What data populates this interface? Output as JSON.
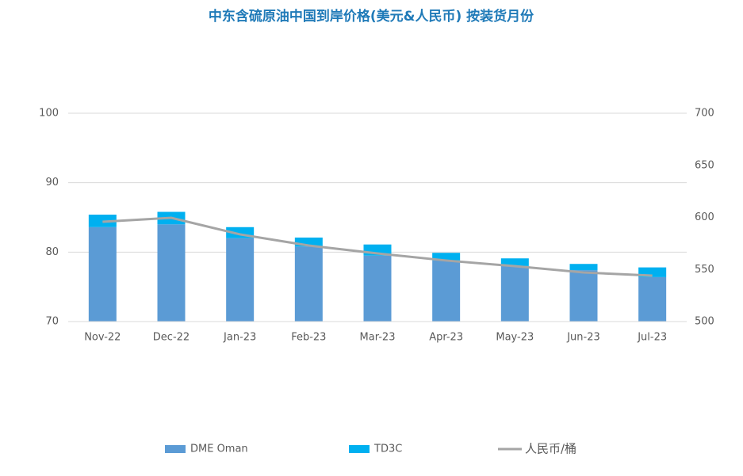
{
  "chart_data": {
    "type": "bar",
    "title": "中东含硫原油中国到岸价格(美元&人民币) 按装货月份",
    "categories": [
      "Nov-22",
      "Dec-22",
      "Jan-23",
      "Feb-23",
      "Mar-23",
      "Apr-23",
      "May-23",
      "Jun-23",
      "Jul-23"
    ],
    "series": [
      {
        "name": "DME Oman",
        "color": "#5b9bd5",
        "values": [
          83.6,
          84.0,
          82.0,
          80.8,
          79.5,
          78.8,
          78.0,
          77.4,
          76.4
        ]
      },
      {
        "name": "TD3C",
        "color": "#00b0f0",
        "values": [
          1.8,
          1.8,
          1.6,
          1.3,
          1.6,
          1.1,
          1.1,
          0.9,
          1.4
        ]
      },
      {
        "name": "人民币/桶",
        "color": "#a5a5a5",
        "type": "line",
        "axis": "y2",
        "values": [
          595.8,
          599.6,
          583.7,
          573.0,
          565.4,
          558.6,
          553.2,
          547.1,
          544.1
        ]
      }
    ],
    "ylim": [
      70,
      100
    ],
    "yticks": [
      70,
      80,
      90,
      100
    ],
    "y2lim": [
      500,
      700
    ],
    "y2ticks": [
      500,
      550,
      600,
      650,
      700
    ],
    "grid": true,
    "stacked": true,
    "legend": "bottom"
  }
}
